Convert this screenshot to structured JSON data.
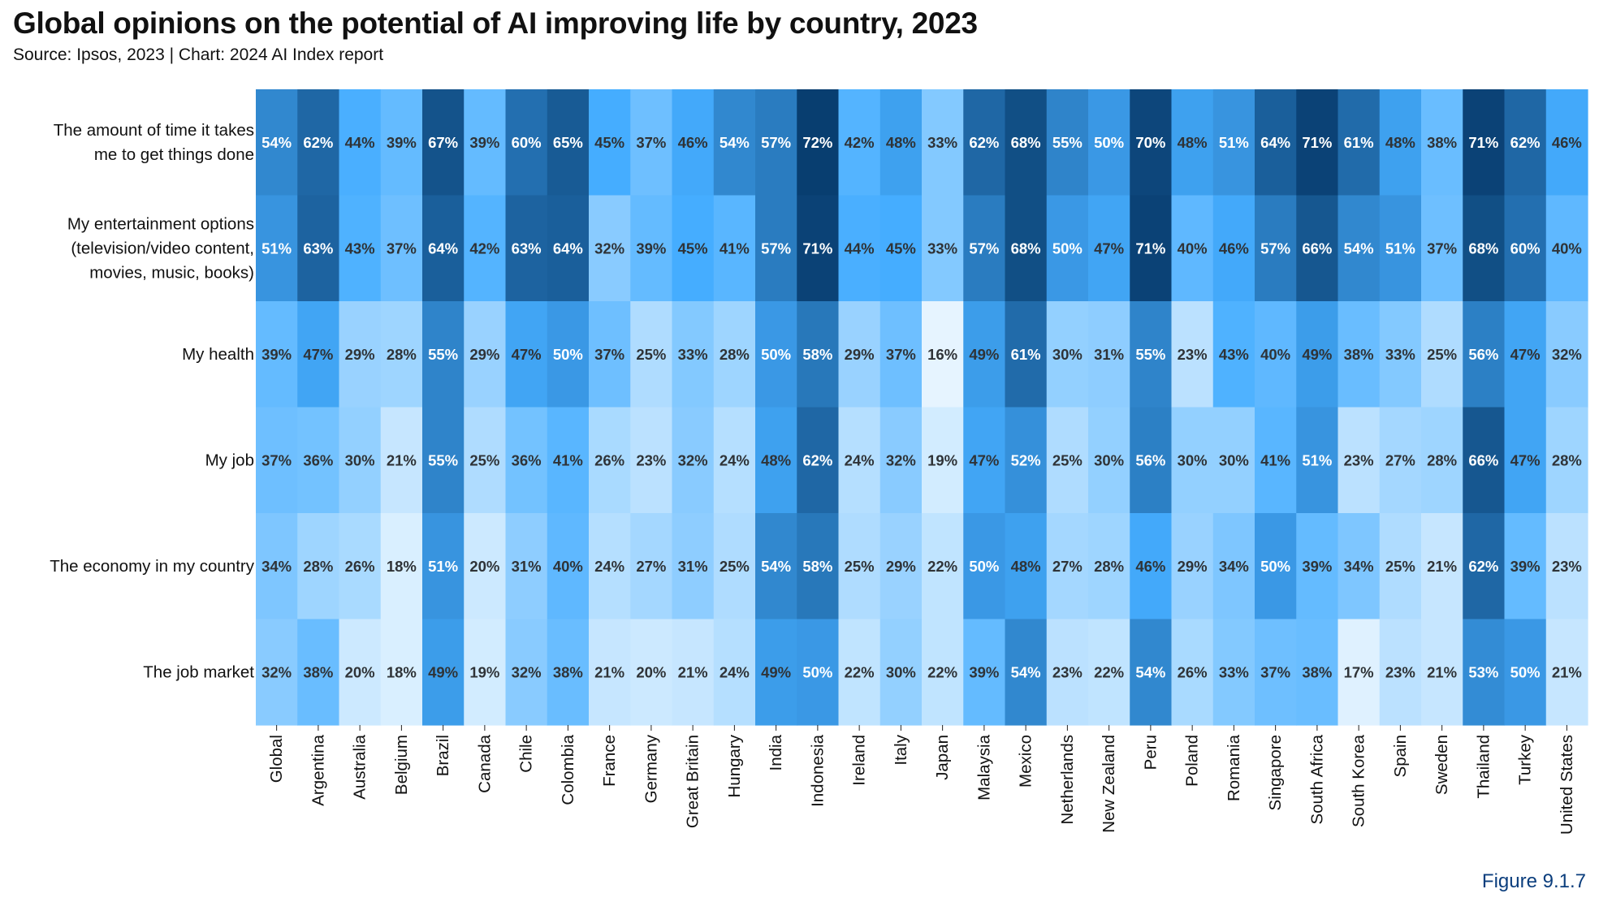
{
  "header": {
    "title": "Global opinions on the potential of AI improving life by country, 2023",
    "subtitle": "Source: Ipsos, 2023 | Chart: 2024 AI Index report"
  },
  "footer": {
    "figure_label": "Figure 9.1.7"
  },
  "colors": {
    "low": "#eef8ff",
    "mid": "#45adff",
    "high": "#063a6b"
  },
  "chart_data": {
    "type": "heatmap",
    "title": "Global opinions on the potential of AI improving life by country, 2023",
    "value_format": "percent",
    "rows": [
      [
        "The amount of time it takes",
        "me to get things done"
      ],
      [
        "My entertainment options",
        "(television/video content,",
        "movies, music, books)"
      ],
      [
        "My health"
      ],
      [
        "My job"
      ],
      [
        "The economy in my country"
      ],
      [
        "The job market"
      ]
    ],
    "columns": [
      "Global",
      "Argentina",
      "Australia",
      "Belgium",
      "Brazil",
      "Canada",
      "Chile",
      "Colombia",
      "France",
      "Germany",
      "Great Britain",
      "Hungary",
      "India",
      "Indonesia",
      "Ireland",
      "Italy",
      "Japan",
      "Malaysia",
      "Mexico",
      "Netherlands",
      "New Zealand",
      "Peru",
      "Poland",
      "Romania",
      "Singapore",
      "South Africa",
      "South Korea",
      "Spain",
      "Sweden",
      "Thailand",
      "Turkey",
      "United States"
    ],
    "values": [
      [
        54,
        62,
        44,
        39,
        67,
        39,
        60,
        65,
        45,
        37,
        46,
        54,
        57,
        72,
        42,
        48,
        33,
        62,
        68,
        55,
        50,
        70,
        48,
        51,
        64,
        71,
        61,
        48,
        38,
        71,
        62,
        46
      ],
      [
        51,
        63,
        43,
        37,
        64,
        42,
        63,
        64,
        32,
        39,
        45,
        41,
        57,
        71,
        44,
        45,
        33,
        57,
        68,
        50,
        47,
        71,
        40,
        46,
        57,
        66,
        54,
        51,
        37,
        68,
        60,
        40
      ],
      [
        39,
        47,
        29,
        28,
        55,
        29,
        47,
        50,
        37,
        25,
        33,
        28,
        50,
        58,
        29,
        37,
        16,
        49,
        61,
        30,
        31,
        55,
        23,
        43,
        40,
        49,
        38,
        33,
        25,
        56,
        47,
        32
      ],
      [
        37,
        36,
        30,
        21,
        55,
        25,
        36,
        41,
        26,
        23,
        32,
        24,
        48,
        62,
        24,
        32,
        19,
        47,
        52,
        25,
        30,
        56,
        30,
        30,
        41,
        51,
        23,
        27,
        28,
        66,
        47,
        28
      ],
      [
        34,
        28,
        26,
        18,
        51,
        20,
        31,
        40,
        24,
        27,
        31,
        25,
        54,
        58,
        25,
        29,
        22,
        50,
        48,
        27,
        28,
        46,
        29,
        34,
        50,
        39,
        34,
        25,
        21,
        62,
        39,
        23
      ],
      [
        32,
        38,
        20,
        18,
        49,
        19,
        32,
        38,
        21,
        20,
        21,
        24,
        49,
        50,
        22,
        30,
        22,
        39,
        54,
        23,
        22,
        54,
        26,
        33,
        37,
        38,
        17,
        23,
        21,
        53,
        50,
        21
      ]
    ]
  }
}
